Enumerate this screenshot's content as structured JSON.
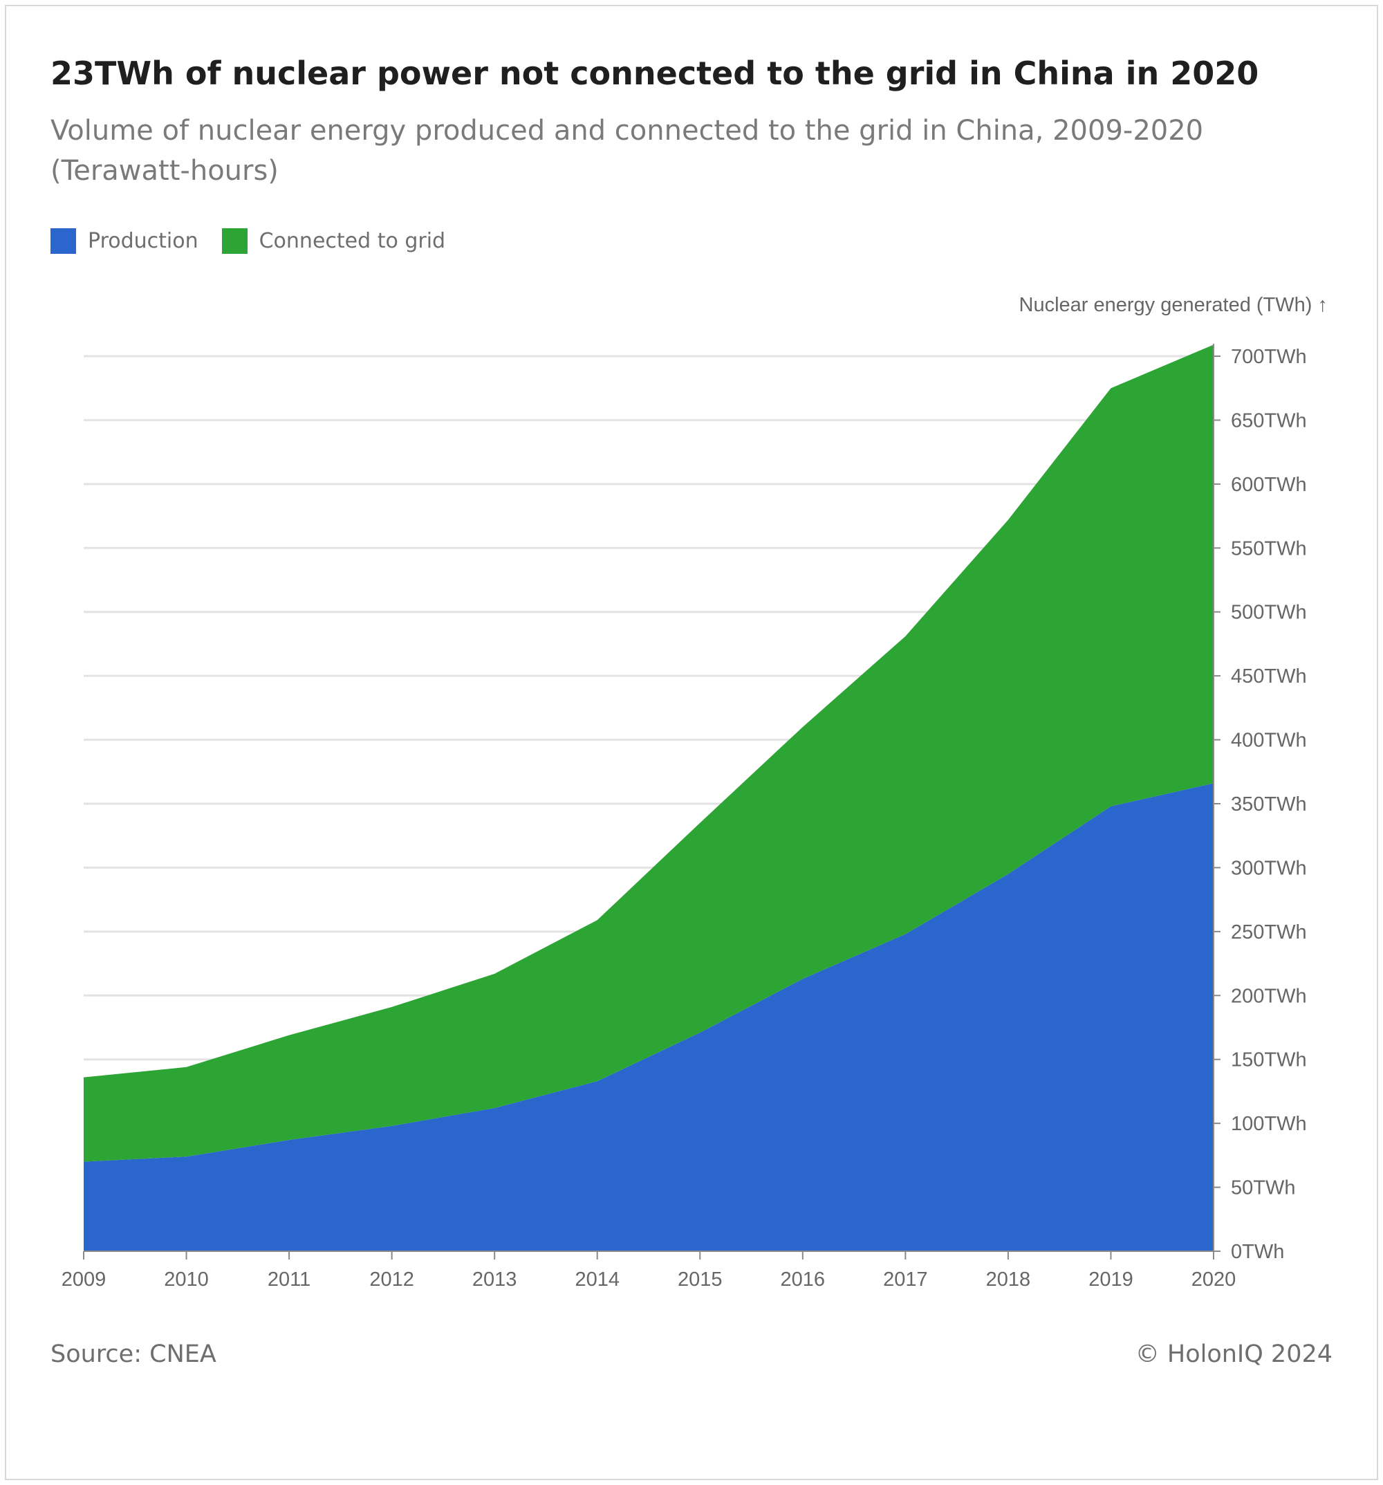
{
  "title": "23TWh of nuclear power not connected to the grid in China in 2020",
  "subtitle": "Volume of nuclear energy produced and connected to the grid in China, 2009-2020 (Terawatt-hours)",
  "legend": [
    {
      "label": "Production",
      "color": "#2a66cc"
    },
    {
      "label": "Connected to grid",
      "color": "#2ca535"
    }
  ],
  "footer": {
    "source": "Source: CNEA",
    "copyright": "© HolonIQ 2024"
  },
  "chart_data": {
    "type": "area",
    "stacked": true,
    "x": [
      "2009",
      "2010",
      "2011",
      "2012",
      "2013",
      "2014",
      "2015",
      "2016",
      "2017",
      "2018",
      "2019",
      "2020"
    ],
    "series": [
      {
        "name": "Production",
        "color": "#2a66cc",
        "values": [
          70,
          74,
          87,
          98,
          112,
          133,
          171,
          213,
          248,
          295,
          348,
          366
        ]
      },
      {
        "name": "Connected to grid",
        "color": "#2ca535",
        "values": [
          66,
          70,
          82,
          93,
          105,
          126,
          164,
          197,
          233,
          277,
          327,
          343
        ]
      }
    ],
    "ylabel": "Nuclear energy generated (TWh) ↑",
    "ylim": [
      0,
      700
    ],
    "yticks": [
      "0TWh",
      "50TWh",
      "100TWh",
      "150TWh",
      "200TWh",
      "250TWh",
      "300TWh",
      "350TWh",
      "400TWh",
      "450TWh",
      "500TWh",
      "550TWh",
      "600TWh",
      "650TWh",
      "700TWh"
    ],
    "ytick_values": [
      0,
      50,
      100,
      150,
      200,
      250,
      300,
      350,
      400,
      450,
      500,
      550,
      600,
      650,
      700
    ],
    "y_axis_position": "right",
    "grid": true
  }
}
